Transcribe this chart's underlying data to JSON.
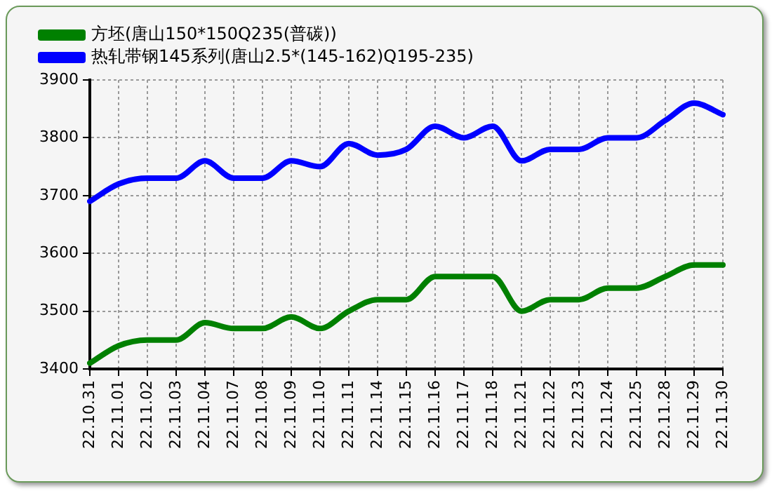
{
  "chart_data": {
    "type": "line",
    "categories": [
      "22.10.31",
      "22.11.01",
      "22.11.02",
      "22.11.03",
      "22.11.04",
      "22.11.07",
      "22.11.08",
      "22.11.09",
      "22.11.10",
      "22.11.11",
      "22.11.14",
      "22.11.15",
      "22.11.16",
      "22.11.17",
      "22.11.18",
      "22.11.21",
      "22.11.22",
      "22.11.23",
      "22.11.24",
      "22.11.25",
      "22.11.28",
      "22.11.29",
      "22.11.30"
    ],
    "series": [
      {
        "name": "方坯(唐山150*150Q235(普碳))",
        "color": "#008000",
        "values": [
          3410,
          3440,
          3450,
          3450,
          3480,
          3470,
          3470,
          3490,
          3470,
          3500,
          3520,
          3520,
          3560,
          3560,
          3560,
          3500,
          3520,
          3520,
          3540,
          3540,
          3560,
          3580,
          3580
        ]
      },
      {
        "name": "热轧带钢145系列(唐山2.5*(145-162)Q195-235)",
        "color": "#0000ff",
        "values": [
          3690,
          3720,
          3730,
          3730,
          3760,
          3730,
          3730,
          3760,
          3750,
          3790,
          3770,
          3780,
          3820,
          3800,
          3820,
          3760,
          3780,
          3780,
          3800,
          3800,
          3830,
          3860,
          3840
        ]
      }
    ],
    "ylim": [
      3400,
      3900
    ],
    "yticks": [
      3400,
      3500,
      3600,
      3700,
      3800,
      3900
    ],
    "grid": true,
    "legend": "top left",
    "marker": "none",
    "line_style": "solid"
  }
}
